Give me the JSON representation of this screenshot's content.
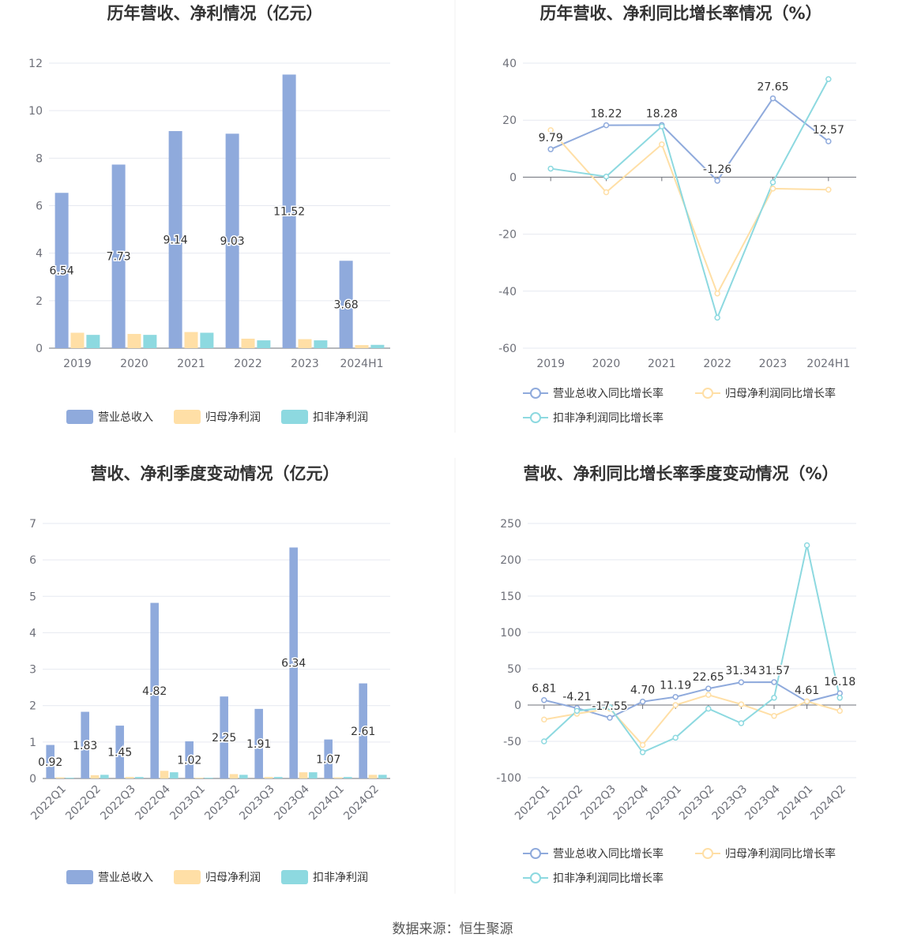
{
  "source_text": "数据来源：恒生聚源",
  "colors": {
    "revenue": "#8faadc",
    "parent_profit": "#ffdfa6",
    "deducted_profit": "#8dd9e0",
    "grid": "#e6e9f0",
    "axis": "#6e7079"
  },
  "chart_data": [
    {
      "type": "bar",
      "title": "历年营收、净利情况（亿元）",
      "categories": [
        "2019",
        "2020",
        "2021",
        "2022",
        "2023",
        "2024H1"
      ],
      "ylim": [
        0,
        12
      ],
      "yticks": [
        0,
        2,
        4,
        6,
        8,
        10,
        12
      ],
      "grid": true,
      "legend_position": "bottom",
      "series": [
        {
          "name": "营业总收入",
          "values": [
            6.54,
            7.73,
            9.14,
            9.03,
            11.52,
            3.68
          ],
          "labeled": true
        },
        {
          "name": "归母净利润",
          "values": [
            0.65,
            0.6,
            0.68,
            0.4,
            0.38,
            0.13
          ],
          "labeled": false
        },
        {
          "name": "扣非净利润",
          "values": [
            0.56,
            0.56,
            0.65,
            0.33,
            0.33,
            0.14
          ],
          "labeled": false
        }
      ]
    },
    {
      "type": "line",
      "title": "历年营收、净利同比增长率情况（%）",
      "categories": [
        "2019",
        "2020",
        "2021",
        "2022",
        "2023",
        "2024H1"
      ],
      "ylim": [
        -60,
        40
      ],
      "yticks": [
        -60,
        -40,
        -20,
        0,
        20,
        40
      ],
      "grid": true,
      "legend_position": "bottom",
      "series": [
        {
          "name": "营业总收入同比增长率",
          "values": [
            9.79,
            18.22,
            18.28,
            -1.26,
            27.65,
            12.57
          ],
          "labeled": true
        },
        {
          "name": "归母净利润同比增长率",
          "values": [
            16.5,
            -5.3,
            11.5,
            -40.8,
            -4.0,
            -4.4
          ],
          "labeled": false
        },
        {
          "name": "扣非净利润同比增长率",
          "values": [
            3.0,
            0.2,
            17.8,
            -49.3,
            -1.8,
            34.4
          ],
          "labeled": false
        }
      ]
    },
    {
      "type": "bar",
      "title": "营收、净利季度变动情况（亿元）",
      "categories": [
        "2022Q1",
        "2022Q2",
        "2022Q3",
        "2022Q4",
        "2023Q1",
        "2023Q2",
        "2023Q3",
        "2023Q4",
        "2024Q1",
        "2024Q2"
      ],
      "ylim": [
        0,
        7
      ],
      "yticks": [
        0,
        1,
        2,
        3,
        4,
        5,
        6,
        7
      ],
      "grid": true,
      "legend_position": "bottom",
      "series": [
        {
          "name": "营业总收入",
          "values": [
            0.92,
            1.83,
            1.45,
            4.82,
            1.02,
            2.25,
            1.91,
            6.34,
            1.07,
            2.61
          ],
          "labeled": true
        },
        {
          "name": "归母净利润",
          "values": [
            0.03,
            0.09,
            0.04,
            0.21,
            0.02,
            0.12,
            0.04,
            0.17,
            0.03,
            0.1
          ],
          "labeled": false
        },
        {
          "name": "扣非净利润",
          "values": [
            0.02,
            0.1,
            0.04,
            0.17,
            0.02,
            0.1,
            0.04,
            0.17,
            0.04,
            0.1
          ],
          "labeled": false
        }
      ]
    },
    {
      "type": "line",
      "title": "营收、净利同比增长率季度变动情况（%）",
      "categories": [
        "2022Q1",
        "2022Q2",
        "2022Q3",
        "2022Q4",
        "2023Q1",
        "2023Q2",
        "2023Q3",
        "2023Q4",
        "2024Q1",
        "2024Q2"
      ],
      "ylim": [
        -100,
        250
      ],
      "yticks": [
        -100,
        -50,
        0,
        50,
        100,
        150,
        200,
        250
      ],
      "grid": true,
      "legend_position": "bottom",
      "series": [
        {
          "name": "营业总收入同比增长率",
          "values": [
            6.81,
            -4.21,
            -17.55,
            4.7,
            11.19,
            22.65,
            31.34,
            31.57,
            4.61,
            16.18
          ],
          "labeled": true
        },
        {
          "name": "归母净利润同比增长率",
          "values": [
            -20,
            -12,
            -5,
            -55,
            0,
            14,
            1,
            -15,
            5,
            -8
          ],
          "labeled": false
        },
        {
          "name": "扣非净利润同比增长率",
          "values": [
            -50,
            -8,
            -3,
            -65,
            -45,
            -5,
            -25,
            10,
            220,
            10
          ],
          "labeled": false
        }
      ]
    }
  ]
}
